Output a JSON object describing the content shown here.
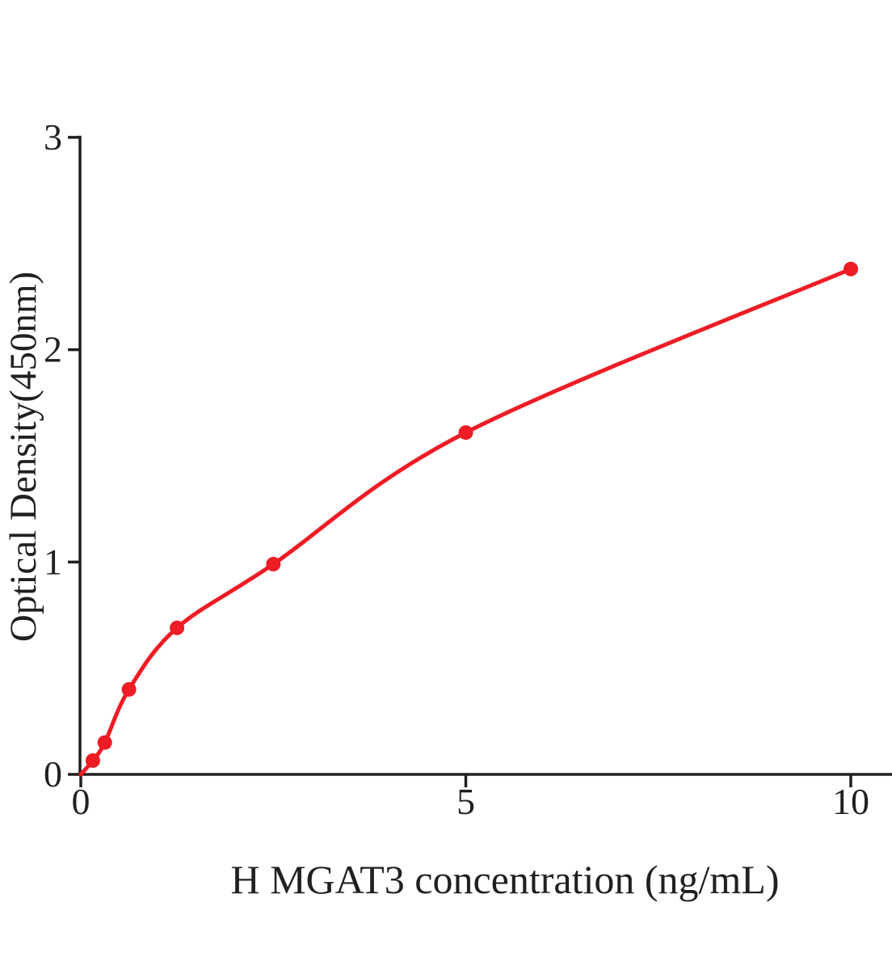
{
  "chart_data": {
    "type": "scatter",
    "title": "",
    "xlabel": "H MGAT3 concentration (ng/mL)",
    "ylabel": "Optical Density(450nm)",
    "series": [
      {
        "x": [
          0.156,
          0.312,
          0.625,
          1.25,
          2.5,
          5,
          10
        ],
        "y": [
          0.065,
          0.15,
          0.4,
          0.69,
          0.99,
          1.61,
          2.38
        ]
      }
    ],
    "fit_curve_start": {
      "x": 0,
      "y": 0
    },
    "xticks": [
      "0",
      "5",
      "10"
    ],
    "xtick_values": [
      0,
      5,
      10
    ],
    "yticks": [
      "0",
      "1",
      "2",
      "3"
    ],
    "ytick_values": [
      0,
      1,
      2,
      3
    ],
    "xlim": [
      0,
      10.55
    ],
    "ylim": [
      0,
      3
    ],
    "grid": false,
    "legend": "none",
    "colors": {
      "curve": "#ee1c25",
      "marker": "#ee1c25",
      "axis": "#231f20",
      "text": "#231f20",
      "background": "#ffffff"
    }
  }
}
